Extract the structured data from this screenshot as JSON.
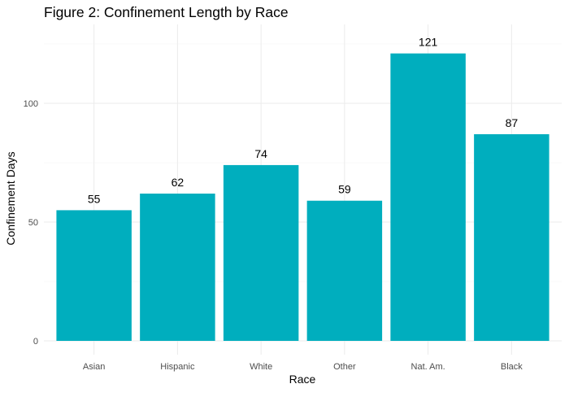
{
  "chart_data": {
    "type": "bar",
    "title": "Figure 2: Confinement Length by Race",
    "xlabel": "Race",
    "ylabel": "Confinement Days",
    "categories": [
      "Asian",
      "Hispanic",
      "White",
      "Other",
      "Nat. Am.",
      "Black"
    ],
    "values": [
      55,
      62,
      74,
      59,
      121,
      87
    ],
    "value_labels": [
      "55",
      "62",
      "74",
      "59",
      "121",
      "87"
    ],
    "ylim": [
      0,
      127
    ],
    "yticks": [
      0,
      50,
      100
    ],
    "ytick_labels": [
      "0",
      "50",
      "100"
    ],
    "grid": true,
    "legend": "none",
    "bar_color": "#00AEBE"
  }
}
